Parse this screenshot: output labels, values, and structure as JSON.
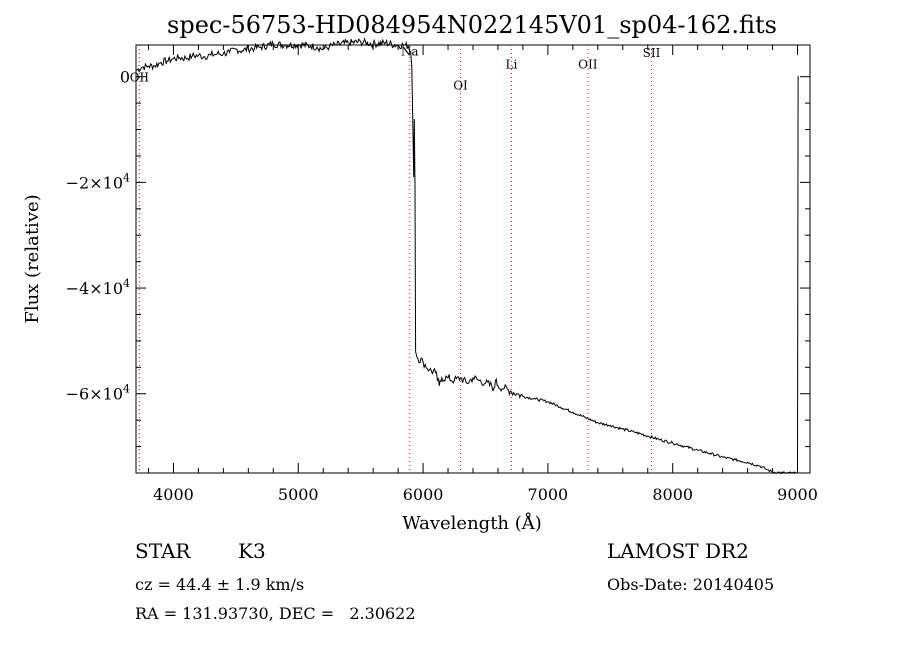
{
  "chart_data": {
    "type": "line",
    "title": "spec-56753-HD084954N022145V01_sp04-162.fits",
    "xlabel": "Wavelength (Å)",
    "ylabel": "Flux (relative)",
    "xlim": [
      3700,
      9100
    ],
    "ylim": [
      -75000,
      6000
    ],
    "x_ticks": [
      4000,
      5000,
      6000,
      7000,
      8000,
      9000
    ],
    "x_tick_labels": [
      "4000",
      "5000",
      "6000",
      "7000",
      "8000",
      "9000"
    ],
    "y_ticks": [
      0,
      -20000,
      -40000,
      -60000
    ],
    "y_tick_labels": [
      {
        "mantissa": "0",
        "exp": ""
      },
      {
        "mantissa": "−2×10",
        "exp": "4"
      },
      {
        "mantissa": "−4×10",
        "exp": "4"
      },
      {
        "mantissa": "−6×10",
        "exp": "4"
      }
    ],
    "lines": [
      {
        "label": "OII",
        "x": 3727,
        "label_y": 0
      },
      {
        "label": "Na",
        "x": 5893,
        "label_y": 5000
      },
      {
        "label": "OI",
        "x": 6300,
        "label_y": -1500
      },
      {
        "label": "Li",
        "x": 6708,
        "label_y": 2500
      },
      {
        "label": "OII",
        "x": 7320,
        "label_y": 2500
      },
      {
        "label": "SII",
        "x": 7830,
        "label_y": 4700
      }
    ],
    "series": [
      {
        "x": [
          3700,
          3750,
          3800,
          3850,
          3900,
          3950,
          4000,
          4050,
          4100,
          4150,
          4200,
          4250,
          4300,
          4350,
          4400,
          4450,
          4500,
          4550,
          4600,
          4650,
          4700,
          4800,
          4900,
          5000,
          5100,
          5150,
          5200,
          5250,
          5300,
          5400,
          5500,
          5600,
          5700,
          5800,
          5850,
          5880,
          5900,
          5910,
          5920,
          5925,
          5930,
          5935,
          5940,
          5950,
          6000,
          6050,
          6100,
          6130,
          6150,
          6200,
          6250,
          6300,
          6350,
          6400,
          6450,
          6500,
          6550,
          6560,
          6580,
          6600,
          6650,
          6700,
          6750,
          6800,
          6900,
          7000,
          7100,
          7200,
          7300,
          7400,
          7500,
          7600,
          7700,
          7800,
          7900,
          8000,
          8100,
          8200,
          8300,
          8400,
          8500,
          8600,
          8700,
          8750,
          8800,
          8850,
          8900,
          8950,
          8990,
          9000,
          9005,
          9010
        ],
        "y": [
          1200,
          1800,
          2000,
          2100,
          2700,
          3000,
          3400,
          3600,
          3500,
          3900,
          4000,
          3800,
          4100,
          4300,
          4400,
          4600,
          5200,
          4900,
          5300,
          5400,
          5600,
          6200,
          6000,
          6100,
          5800,
          5600,
          5200,
          5700,
          6000,
          6400,
          6600,
          6200,
          6400,
          5900,
          6000,
          5800,
          4800,
          2000,
          -12000,
          -19000,
          -8000,
          -21000,
          -52000,
          -53000,
          -54000,
          -55500,
          -56000,
          -58500,
          -57000,
          -57000,
          -57500,
          -57000,
          -58000,
          -57000,
          -57500,
          -58000,
          -58500,
          -59500,
          -57500,
          -58500,
          -59000,
          -59500,
          -60000,
          -60500,
          -61000,
          -61500,
          -62500,
          -63500,
          -64500,
          -65500,
          -66000,
          -66700,
          -67300,
          -68000,
          -68700,
          -69300,
          -70000,
          -70700,
          -71300,
          -72000,
          -72500,
          -73000,
          -73700,
          -74300,
          -74800,
          -74900,
          -75000,
          -75000,
          -75000,
          -75000,
          0,
          0
        ]
      }
    ],
    "grid": false
  },
  "info": {
    "class": "STAR",
    "subclass": "K3",
    "cz": "cz = 44.4 ± 1.9 km/s",
    "coords": "RA = 131.93730, DEC =   2.30622",
    "survey": "LAMOST DR2",
    "obs_date": "Obs-Date: 20140405"
  }
}
